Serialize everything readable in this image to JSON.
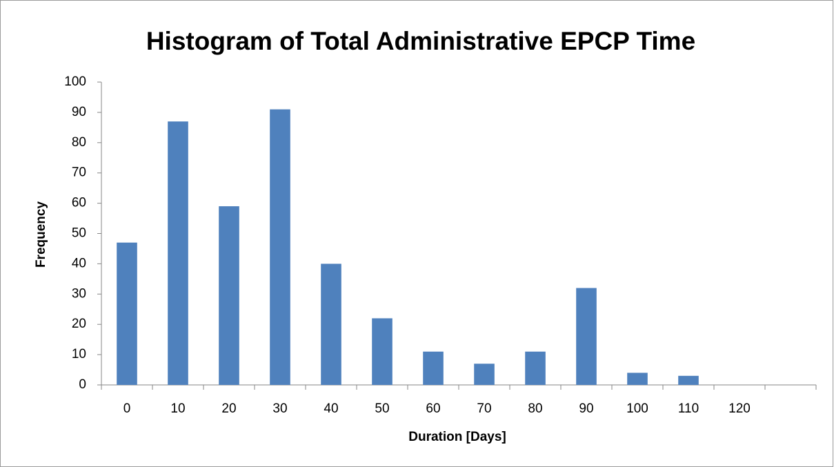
{
  "chart_data": {
    "type": "bar",
    "title": "Histogram of Total Administrative EPCP Time",
    "x_label": "Duration  [Days]",
    "y_label": "Frequency",
    "categories": [
      "0",
      "10",
      "20",
      "30",
      "40",
      "50",
      "60",
      "70",
      "80",
      "90",
      "100",
      "110",
      "120",
      null
    ],
    "values": [
      47,
      87,
      59,
      91,
      40,
      22,
      11,
      7,
      11,
      32,
      4,
      3,
      0,
      null
    ],
    "color": "#4f81bd",
    "ylim": [
      0,
      100
    ],
    "yticks": [
      0,
      10,
      20,
      30,
      40,
      50,
      60,
      70,
      80,
      90,
      100
    ],
    "grid": false
  }
}
